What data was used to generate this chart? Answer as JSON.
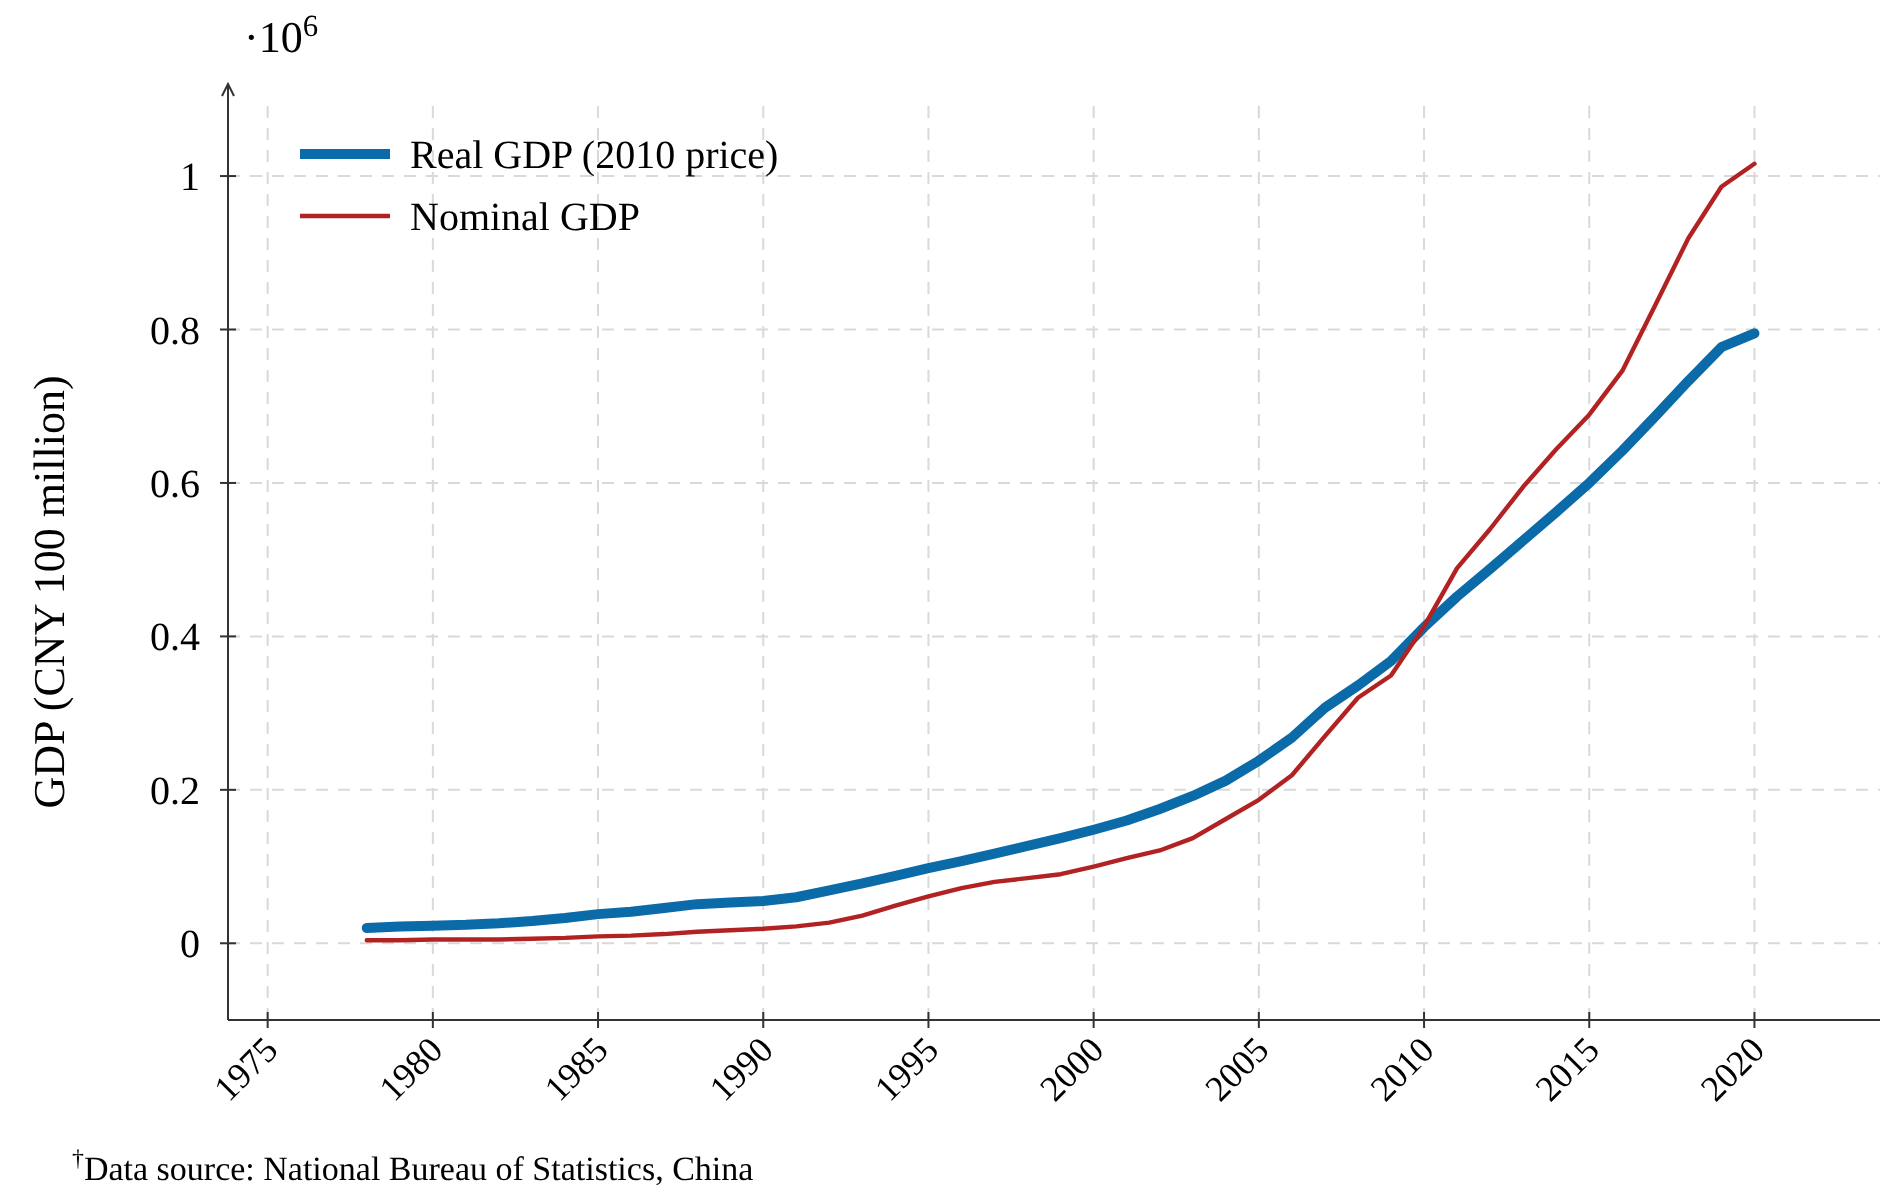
{
  "chart_data": {
    "type": "line",
    "ylabel": "GDP (CNY 100 million)",
    "x": [
      1978,
      1979,
      1980,
      1981,
      1982,
      1983,
      1984,
      1985,
      1986,
      1987,
      1988,
      1989,
      1990,
      1991,
      1992,
      1993,
      1994,
      1995,
      1996,
      1997,
      1998,
      1999,
      2000,
      2001,
      2002,
      2003,
      2004,
      2005,
      2006,
      2007,
      2008,
      2009,
      2010,
      2011,
      2012,
      2013,
      2014,
      2015,
      2016,
      2017,
      2018,
      2019,
      2020
    ],
    "series": [
      {
        "name": "Real GDP (2010 price)",
        "color": "#0b6aa8",
        "values": [
          0.02,
          0.022,
          0.023,
          0.024,
          0.026,
          0.029,
          0.033,
          0.038,
          0.041,
          0.046,
          0.051,
          0.053,
          0.055,
          0.06,
          0.069,
          0.078,
          0.088,
          0.098,
          0.107,
          0.117,
          0.127,
          0.137,
          0.148,
          0.16,
          0.175,
          0.192,
          0.212,
          0.238,
          0.268,
          0.307,
          0.336,
          0.368,
          0.412,
          0.452,
          0.488,
          0.525,
          0.562,
          0.6,
          0.642,
          0.687,
          0.733,
          0.777,
          0.795
        ]
      },
      {
        "name": "Nominal GDP",
        "color": "#b22222",
        "values": [
          0.004,
          0.004,
          0.005,
          0.005,
          0.005,
          0.006,
          0.007,
          0.009,
          0.01,
          0.012,
          0.015,
          0.017,
          0.019,
          0.022,
          0.027,
          0.036,
          0.049,
          0.061,
          0.072,
          0.08,
          0.085,
          0.09,
          0.1,
          0.111,
          0.121,
          0.137,
          0.162,
          0.187,
          0.219,
          0.27,
          0.32,
          0.349,
          0.413,
          0.489,
          0.54,
          0.595,
          0.644,
          0.689,
          0.746,
          0.832,
          0.919,
          0.986,
          1.016
        ]
      }
    ],
    "xlim": [
      1973.8,
      2023.8
    ],
    "ylim": [
      -0.1,
      1.12
    ],
    "xticks": [
      1975,
      1980,
      1985,
      1990,
      1995,
      2000,
      2005,
      2010,
      2015,
      2020
    ],
    "yticks": [
      0,
      0.2,
      0.4,
      0.6,
      0.8,
      1
    ],
    "grid": true,
    "legend": "top left",
    "marker": "none",
    "line_style": "solid",
    "annotations": [
      "·10$^{6}$",
      "$^{†}$Data source: National Bureau of Statistics, China"
    ]
  }
}
